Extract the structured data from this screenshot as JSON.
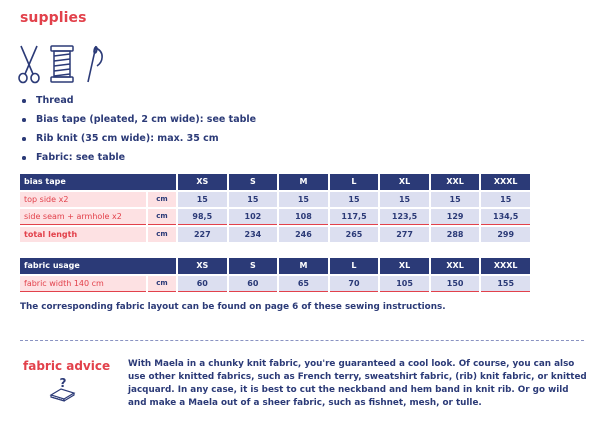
{
  "supplies": {
    "heading": "supplies",
    "icons": [
      "scissors-icon",
      "thread-spool-icon",
      "needle-icon"
    ],
    "items": [
      "Thread",
      "Bias tape (pleated, 2 cm wide): see table",
      "Rib knit (35 cm wide): max. 35 cm",
      "Fabric: see table"
    ]
  },
  "bias_table": {
    "header": {
      "label": "bias tape",
      "sizes": [
        "XS",
        "S",
        "M",
        "L",
        "XL",
        "XXL",
        "XXXL"
      ]
    },
    "rows": [
      {
        "label": "top side x2",
        "unit": "cm",
        "values": [
          "15",
          "15",
          "15",
          "15",
          "15",
          "15",
          "15"
        ]
      },
      {
        "label": "side seam + armhole x2",
        "unit": "cm",
        "values": [
          "98,5",
          "102",
          "108",
          "117,5",
          "123,5",
          "129",
          "134,5"
        ]
      },
      {
        "label": "total length",
        "unit": "cm",
        "values": [
          "227",
          "234",
          "246",
          "265",
          "277",
          "288",
          "299"
        ]
      }
    ]
  },
  "fabric_table": {
    "header": {
      "label": "fabric usage",
      "sizes": [
        "XS",
        "S",
        "M",
        "L",
        "XL",
        "XXL",
        "XXXL"
      ]
    },
    "rows": [
      {
        "label": "fabric width 140 cm",
        "unit": "cm",
        "values": [
          "60",
          "60",
          "65",
          "70",
          "105",
          "150",
          "155"
        ]
      }
    ]
  },
  "note": "The corresponding fabric layout can be found on page 6 of these sewing instructions.",
  "advice": {
    "title": "fabric advice",
    "icon": "fabric-stack-question-icon",
    "text": "With Maela in a chunky knit fabric, you're guaranteed a cool look. Of course, you can also use other knitted fabrics, such as French terry, sweatshirt fabric, (rib) knit fabric, or knitted jacquard. In any case, it is best to cut the neckband and hem band in knit rib. Or go wild and make a Maela out of a sheer fabric, such as fishnet, mesh, or tulle."
  },
  "colors": {
    "navy": "#2b3a77",
    "red": "#e2414b",
    "pink": "#fde1e3",
    "lavender": "#dcdff0"
  }
}
